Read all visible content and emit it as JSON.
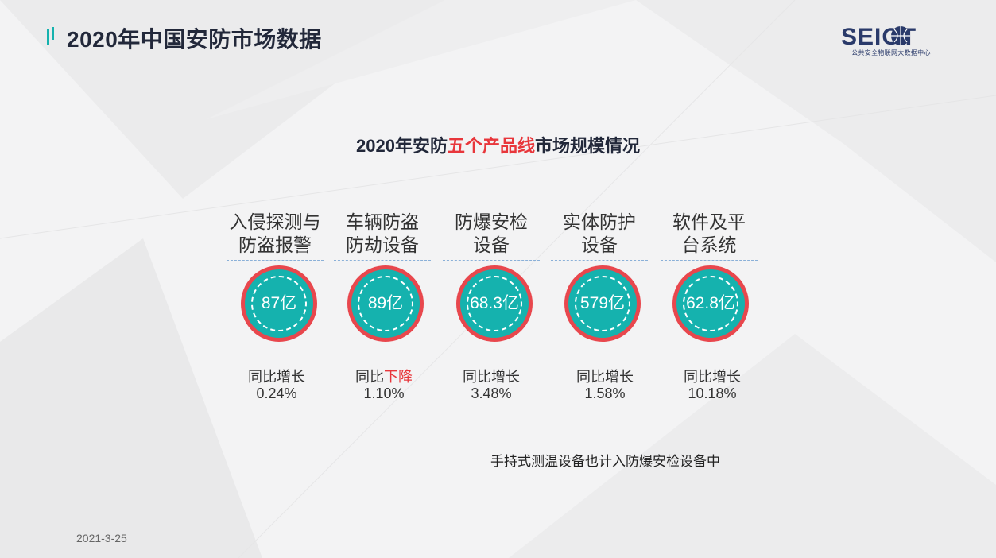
{
  "header": {
    "title": "2020年中国安防市场数据",
    "logo_text": "SEIOT",
    "logo_caption": "公共安全物联网大数据中心"
  },
  "main": {
    "subtitle": {
      "before": "2020年安防",
      "highlight": "五个产品线",
      "after": "市场规模情况"
    },
    "items": [
      {
        "name_line1": "入侵探测与",
        "name_line2": "防盗报警",
        "value": "87亿",
        "growth_prefix": "同比",
        "growth_word": "增长",
        "growth_down": false,
        "growth_value": "0.24%"
      },
      {
        "name_line1": "车辆防盗",
        "name_line2": "防劫设备",
        "value": "89亿",
        "growth_prefix": "同比",
        "growth_word": "下降",
        "growth_down": true,
        "growth_value": "1.10%"
      },
      {
        "name_line1": "防爆安检",
        "name_line2": "设备",
        "value": "68.3亿",
        "growth_prefix": "同比",
        "growth_word": "增长",
        "growth_down": false,
        "growth_value": "3.48%"
      },
      {
        "name_line1": "实体防护",
        "name_line2": "设备",
        "value": "579亿",
        "growth_prefix": "同比",
        "growth_word": "增长",
        "growth_down": false,
        "growth_value": "1.58%"
      },
      {
        "name_line1": "软件及平",
        "name_line2": "台系统",
        "value": "62.8亿",
        "growth_prefix": "同比",
        "growth_word": "增长",
        "growth_down": false,
        "growth_value": "10.18%"
      }
    ],
    "note": "手持式测温设备也计入防爆安检设备中"
  },
  "footer": {
    "date": "2021-3-25"
  },
  "colors": {
    "accent_red": "#e8363b",
    "circle_fill": "#15b2ae",
    "circle_ring": "#e8474d",
    "title_dark": "#22283a",
    "logo_blue": "#2a3a6a"
  }
}
